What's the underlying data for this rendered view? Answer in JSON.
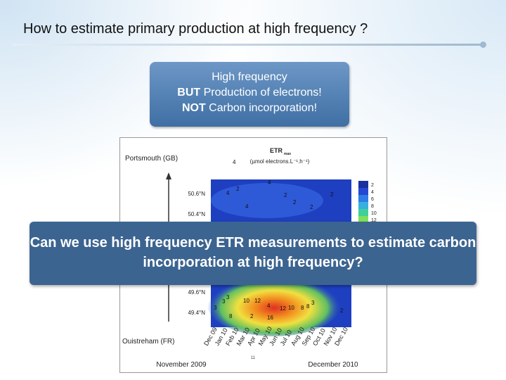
{
  "header": {
    "title": "How to estimate primary production at high frequency ?"
  },
  "callout": {
    "line1": "High frequency",
    "line2": {
      "bold": "BUT",
      "rest": " Production of electrons!"
    },
    "line3": {
      "bold": "NOT",
      "rest": " Carbon incorporation!"
    }
  },
  "figure": {
    "north_label": "Portsmouth (GB)",
    "south_label": "Ouistreham (FR)",
    "measure": "ETR",
    "measure_sub": "max",
    "unit": "(µmol electrons.L⁻¹.h⁻¹)",
    "latitudes": [
      "50.6°N",
      "50.4°N",
      "49.6°N",
      "49.4°N"
    ],
    "legend": [
      "2",
      "4",
      "6",
      "8",
      "10",
      "12"
    ],
    "months": [
      "Dec 09",
      "Jan 10",
      "Feb 10",
      "Mar 10",
      "Apr 10",
      "May 10",
      "Jun 10",
      "Jul 10",
      "Aug 10",
      "Sep 10",
      "Oct 10",
      "Nov 10",
      "Dec 10"
    ],
    "contour_labels": [
      "4",
      "2",
      "4",
      "4",
      "2",
      "2",
      "2",
      "4",
      "2",
      "3",
      "3",
      "10",
      "12",
      "3",
      "4",
      "12",
      "10",
      "8",
      "8",
      "3",
      "2",
      "16",
      "8",
      "2"
    ],
    "start": "November 2009",
    "middle": "11",
    "end": "December 2010"
  },
  "overlay": {
    "text": "Can we use high frequency ETR measurements to estimate carbon incorporation at high frequency?"
  }
}
